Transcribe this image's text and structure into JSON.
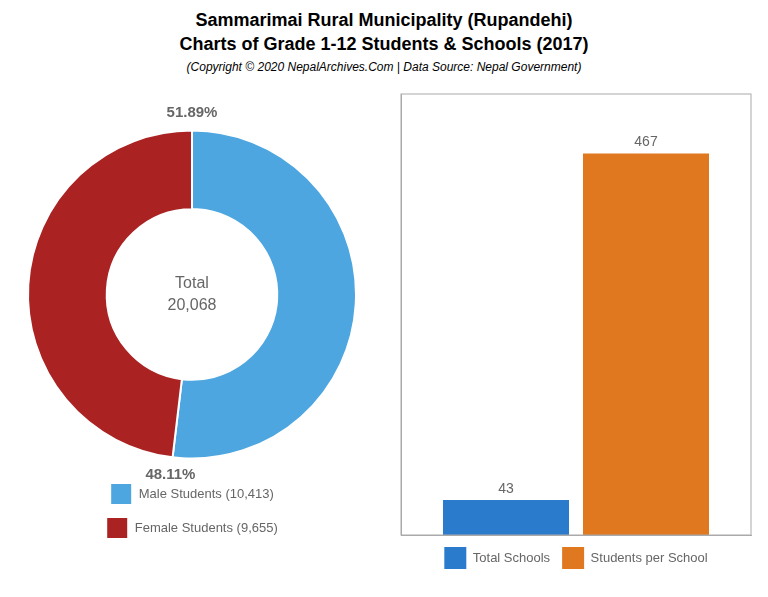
{
  "chart_data": [
    {
      "type": "doughnut",
      "title": [
        "Sammarimai Rural Municipality (Rupandehi)",
        "Charts of Grade 1-12 Students & Schools (2017)"
      ],
      "subtitle": "(Copyright © 2020 NepalArchives.Com | Data Source: Nepal Government)",
      "categories": [
        "Male Students (10,413)",
        "Female Students (9,655)"
      ],
      "values": [
        51.89,
        48.11
      ],
      "value_labels": [
        "51.89%",
        "48.11%"
      ],
      "data_labels": true,
      "colors": [
        "#4da6e0",
        "#aa2222"
      ],
      "annotations": [
        "Total",
        "20,068"
      ],
      "legend": "bottom"
    },
    {
      "type": "bar",
      "categories": [
        null
      ],
      "series": [
        {
          "name": "Total Schools",
          "color": "#2b7bcc",
          "values": [
            43
          ]
        },
        {
          "name": "Students per School",
          "color": "#e07820",
          "values": [
            467
          ]
        }
      ],
      "ylim": [
        0,
        540
      ],
      "tick_labels": false,
      "grid": false,
      "data_labels": true,
      "legend": "bottom"
    }
  ]
}
